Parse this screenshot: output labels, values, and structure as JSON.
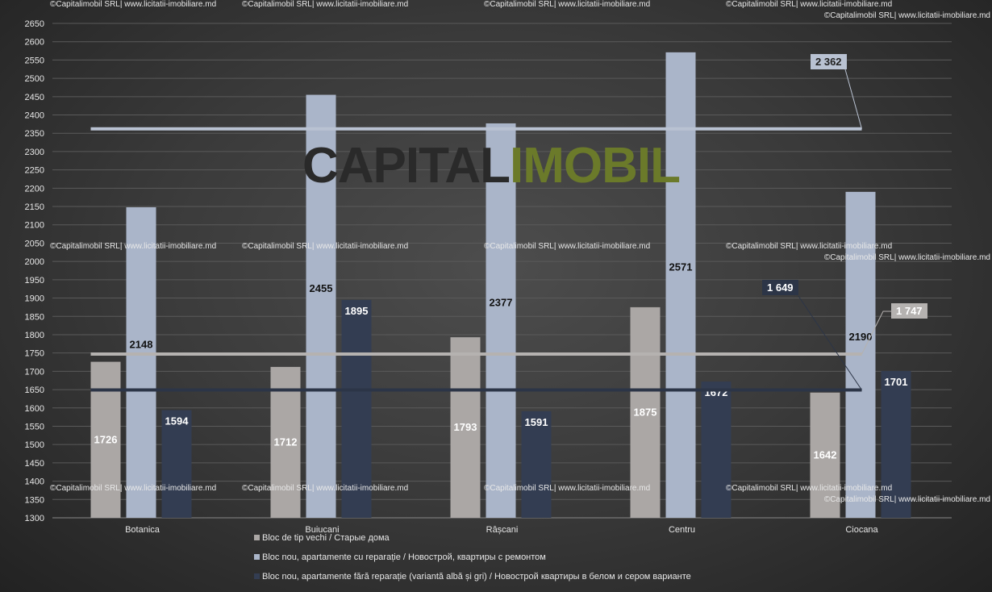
{
  "watermark": "©Capitalimobil SRL| www.licitatii-imobiliare.md",
  "logo": {
    "part1": "CAPITAL",
    "part2": "IMOBIL"
  },
  "colors": {
    "old": "#aba7a5",
    "new_renovated": "#aab5c9",
    "new_unfinished": "#333d52",
    "avg_old_line": "#b5b2b0",
    "avg_renovated_line": "#b9c2d2",
    "avg_unfinished_line": "#2c3547"
  },
  "chart_data": {
    "type": "bar",
    "categories": [
      "Botanica",
      "Buiucani",
      "Râșcani",
      "Centru",
      "Ciocana"
    ],
    "series": [
      {
        "name": "Bloc de tip vechi / Старые дома",
        "values": [
          1726,
          1712,
          1793,
          1875,
          1642
        ]
      },
      {
        "name": "Bloc nou, apartamente cu reparație / Новострой, квартиры с ремонтом",
        "values": [
          2148,
          2455,
          2377,
          2571,
          2190
        ]
      },
      {
        "name": "Bloc nou, apartamente fără reparație (variantă albă și gri) / Новострой квартиры в белом и сером варианте",
        "values": [
          1594,
          1895,
          1591,
          1672,
          1701
        ]
      }
    ],
    "averages": [
      {
        "series": 1,
        "value": 2362,
        "label": "2 362"
      },
      {
        "series": 0,
        "value": 1747,
        "label": "1 747"
      },
      {
        "series": 2,
        "value": 1649,
        "label": "1 649"
      }
    ],
    "ylim": [
      1300,
      2650
    ],
    "ytick_step": 50,
    "grid": true,
    "legend_position": "bottom"
  }
}
